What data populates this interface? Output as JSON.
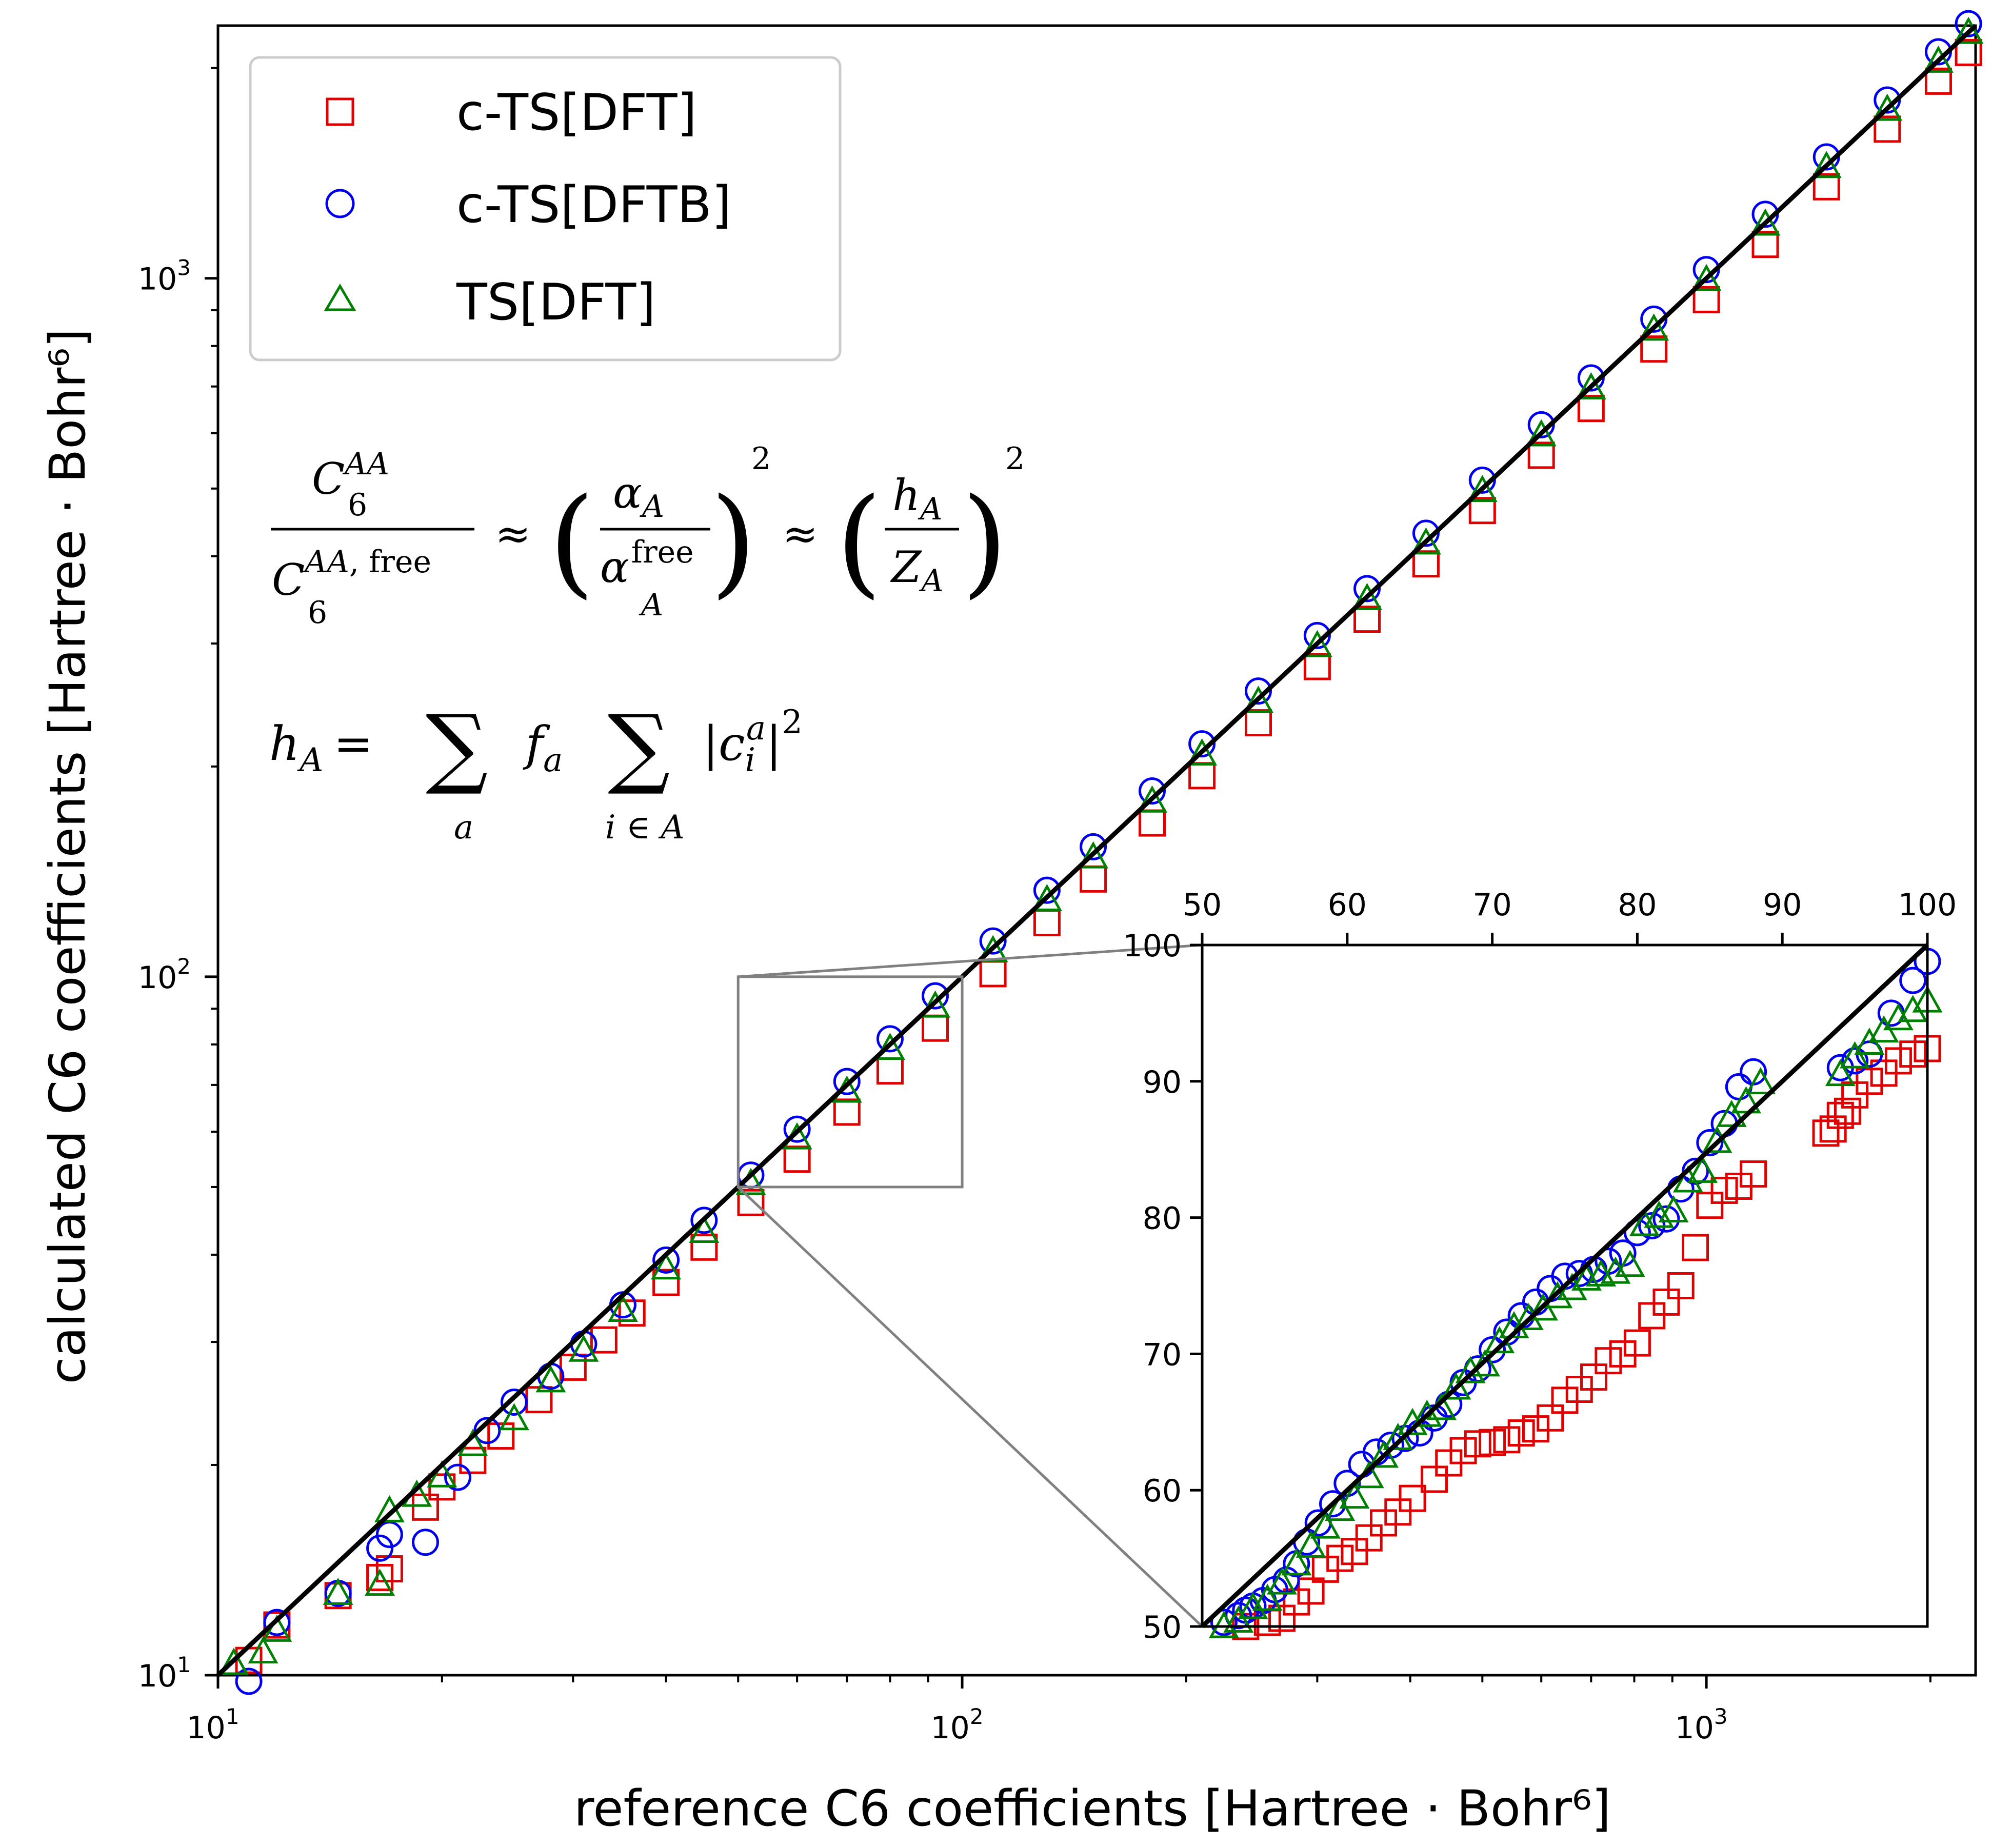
{
  "chart_data": [
    {
      "type": "scatter",
      "xlabel": "reference C6 coefficients [Hartree · Bohr⁶]",
      "ylabel": "calculated C6 coefficients [Hartree · Bohr⁶]",
      "xscale": "log",
      "yscale": "log",
      "xlim": [
        10,
        2300
      ],
      "ylim": [
        10,
        2300
      ],
      "xticks": [
        10,
        100,
        1000
      ],
      "yticks": [
        10,
        100,
        1000
      ],
      "xtick_labels": [
        {
          "base": "10",
          "exp": "1"
        },
        {
          "base": "10",
          "exp": "2"
        },
        {
          "base": "10",
          "exp": "3"
        }
      ],
      "ytick_labels": [
        {
          "base": "10",
          "exp": "1"
        },
        {
          "base": "10",
          "exp": "2"
        },
        {
          "base": "10",
          "exp": "3"
        }
      ],
      "reference_line": "y = x",
      "grid": false,
      "legend_position": "top-left",
      "annotations": [
        "C6^{AA} / C6^{AA,free} ≈ (α_A / α_A^{free})^2 ≈ (h_A / Z_A)^2",
        "h_A = Σ_a f_a Σ_{i∈A} |c_i^a|^2"
      ],
      "zoom_box": {
        "x": [
          50,
          100
        ],
        "y": [
          50,
          100
        ]
      },
      "series": [
        {
          "name": "c-TS[DFT]",
          "marker": "square",
          "color": "#e00000",
          "x": [
            11,
            12,
            14.5,
            16.5,
            17,
            19,
            20,
            22,
            24,
            27,
            30,
            33,
            36,
            40,
            45,
            52,
            60,
            70,
            80,
            92,
            110,
            130,
            150,
            180,
            210,
            250,
            300,
            350,
            420,
            500,
            600,
            700,
            850,
            1000,
            1200,
            1450,
            1750,
            2050,
            2250
          ],
          "y": [
            10.5,
            11.8,
            13.0,
            13.8,
            14.2,
            17.4,
            18.6,
            20.3,
            22.0,
            24.8,
            27.6,
            30.2,
            33.0,
            36.5,
            41.0,
            47.5,
            54.8,
            64.0,
            73.3,
            84.4,
            101,
            119.5,
            138,
            166,
            194,
            231,
            278,
            325,
            390,
            465,
            558,
            651,
            792,
            932,
            1118,
            1352,
            1635,
            1915,
            2105
          ]
        },
        {
          "name": "c-TS[DFTB]",
          "marker": "circle",
          "color": "#0000ee",
          "x": [
            11,
            12,
            14.5,
            16.5,
            17,
            19,
            21,
            23,
            25,
            28,
            31,
            35,
            40,
            45,
            52,
            60,
            70,
            80,
            92,
            110,
            130,
            150,
            180,
            210,
            250,
            300,
            350,
            420,
            500,
            600,
            700,
            850,
            1000,
            1200,
            1450,
            1750,
            2050,
            2250
          ],
          "y": [
            9.8,
            11.9,
            13.1,
            15.2,
            15.9,
            15.5,
            19.2,
            22.4,
            24.6,
            26.8,
            29.8,
            33.9,
            39.3,
            44.8,
            52.0,
            60.5,
            70.8,
            81.5,
            93.9,
            112.5,
            133.0,
            153.5,
            184.5,
            215.5,
            256.5,
            308,
            359.5,
            431.5,
            514,
            617,
            720,
            874,
            1029,
            1235,
            1492,
            1800,
            2110,
            2315
          ]
        },
        {
          "name": "TS[DFT]",
          "marker": "triangle",
          "color": "#008000",
          "x": [
            10.5,
            11.5,
            12,
            14.5,
            16.5,
            17,
            18.5,
            20,
            22,
            25,
            28,
            31,
            35,
            40,
            45,
            52,
            60,
            70,
            80,
            92,
            110,
            130,
            150,
            180,
            210,
            250,
            300,
            350,
            420,
            500,
            600,
            700,
            850,
            1000,
            1200,
            1450,
            1750,
            2050,
            2250
          ],
          "y": [
            10.4,
            10.8,
            11.6,
            13.1,
            13.5,
            17.2,
            18.1,
            19.3,
            21.4,
            23.3,
            26.4,
            29.2,
            33.3,
            38.3,
            43.2,
            50.6,
            58.8,
            68.6,
            79.0,
            90.8,
            109,
            129,
            148.5,
            178.5,
            208.5,
            248,
            298,
            348,
            418,
            497,
            597,
            697,
            846,
            996,
            1196,
            1446,
            1746,
            2046,
            2250
          ]
        }
      ]
    },
    {
      "type": "scatter",
      "role": "inset",
      "xscale": "linear",
      "yscale": "linear",
      "xlim": [
        50,
        100
      ],
      "ylim": [
        50,
        100
      ],
      "xticks": [
        50,
        60,
        70,
        80,
        90,
        100
      ],
      "yticks": [
        50,
        60,
        70,
        80,
        90,
        100
      ],
      "xtick_labels": [
        "50",
        "60",
        "70",
        "80",
        "90",
        "100"
      ],
      "ytick_labels": [
        "50",
        "60",
        "70",
        "80",
        "90",
        "100"
      ],
      "x_axis_position": "top",
      "reference_line": "y = x",
      "series": [
        {
          "name": "c-TS[DFT]",
          "marker": "square",
          "color": "#e00000",
          "x": [
            53.0,
            54.5,
            55.5,
            56.5,
            57.5,
            58.5,
            59.5,
            60.5,
            61.5,
            62.5,
            63.5,
            64.5,
            66,
            67,
            68,
            69,
            70,
            71,
            72,
            73,
            74,
            75,
            76,
            77,
            78,
            79,
            80,
            81,
            82,
            83,
            84,
            85,
            86,
            87,
            88,
            93.0,
            93.5,
            94,
            94.5,
            95,
            96,
            97,
            98,
            99,
            100
          ],
          "y": [
            50.0,
            50.3,
            50.6,
            51.8,
            52.6,
            54.2,
            55.0,
            55.5,
            56.5,
            57.6,
            58.4,
            59.4,
            60.8,
            62.0,
            62.9,
            63.4,
            63.5,
            63.7,
            64.2,
            64.5,
            65.3,
            66.6,
            67.4,
            68.3,
            69.5,
            70.0,
            70.8,
            72.8,
            73.8,
            75.0,
            77.8,
            80.9,
            82.0,
            82.3,
            83.2,
            86.2,
            86.5,
            87.5,
            87.8,
            89.0,
            90.0,
            90.6,
            91.5,
            92.0,
            92.4
          ]
        },
        {
          "name": "c-TS[DFTB]",
          "marker": "circle",
          "color": "#0000ee",
          "x": [
            51.5,
            52.5,
            53.0,
            53.5,
            54.2,
            55.0,
            55.8,
            56.5,
            57.2,
            58.0,
            59.0,
            60.0,
            61.0,
            62.0,
            63.0,
            64.0,
            65.0,
            66.0,
            67.0,
            68.0,
            69.0,
            70.0,
            71.0,
            72.0,
            73.0,
            74.0,
            75.0,
            76.0,
            77.0,
            78.0,
            79.0,
            80.0,
            81.0,
            82.0,
            83.0,
            84.0,
            85.0,
            86.0,
            87.0,
            88.0,
            94.0,
            95.0,
            96.0,
            97.5,
            99.0,
            100
          ],
          "y": [
            50.3,
            50.8,
            51.2,
            51.5,
            51.9,
            52.7,
            53.4,
            54.6,
            56.2,
            57.6,
            59.0,
            60.5,
            61.9,
            62.8,
            63.3,
            63.8,
            64.2,
            65.3,
            66.3,
            67.9,
            68.9,
            70.3,
            71.6,
            72.8,
            73.8,
            74.8,
            75.7,
            75.9,
            76.2,
            76.8,
            77.4,
            78.9,
            79.4,
            79.9,
            82.1,
            83.4,
            85.5,
            86.9,
            89.6,
            90.7,
            91.0,
            91.5,
            92.0,
            95.0,
            97.4,
            98.8
          ]
        },
        {
          "name": "TS[DFT]",
          "marker": "triangle",
          "color": "#008000",
          "x": [
            51.5,
            52.5,
            53.5,
            54.5,
            55.5,
            56.5,
            57.5,
            58.5,
            59.5,
            60.5,
            61.5,
            62.5,
            63.5,
            64.5,
            65.5,
            66.5,
            67.5,
            68.5,
            69.5,
            70.5,
            71.5,
            72.5,
            73.5,
            74.5,
            75.5,
            76.5,
            77.5,
            78.5,
            79.5,
            80.5,
            81.5,
            82.5,
            83.5,
            84.5,
            85.5,
            86.5,
            87.5,
            88.5,
            94.0,
            95.0,
            96.0,
            97.0,
            98.0,
            99.0,
            100
          ],
          "y": [
            50.0,
            50.4,
            51.4,
            52.0,
            53.2,
            54.6,
            55.9,
            57.3,
            58.6,
            59.5,
            61.0,
            62.5,
            63.8,
            64.9,
            65.5,
            66.0,
            67.5,
            68.7,
            69.2,
            70.9,
            72.0,
            72.6,
            73.3,
            74.2,
            74.8,
            75.5,
            75.8,
            76.0,
            76.5,
            79.5,
            80.1,
            80.5,
            82.7,
            83.4,
            85.6,
            87.5,
            88.5,
            89.9,
            90.5,
            91.8,
            92.8,
            93.7,
            94.6,
            95.2,
            95.9
          ]
        }
      ]
    }
  ]
}
